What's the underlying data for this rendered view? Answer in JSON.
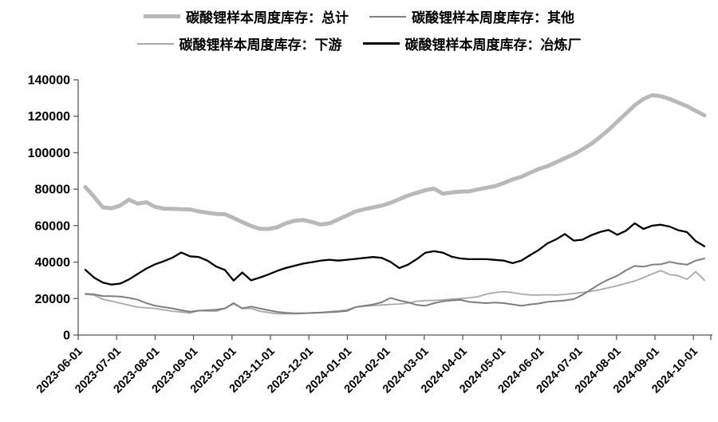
{
  "chart_data": {
    "type": "line",
    "title": "",
    "xlabel": "",
    "ylabel": "",
    "ylim": [
      0,
      140000
    ],
    "grid": false,
    "legend_position": "top",
    "y_ticks": [
      0,
      20000,
      40000,
      60000,
      80000,
      100000,
      120000,
      140000
    ],
    "x_tick_labels": [
      "2023-06-01",
      "2023-07-01",
      "2023-08-01",
      "2023-09-01",
      "2023-10-01",
      "2023-11-01",
      "2023-12-01",
      "2024-01-01",
      "2024-02-01",
      "2024-03-01",
      "2024-04-01",
      "2024-05-01",
      "2024-06-01",
      "2024-07-01",
      "2024-08-01",
      "2024-09-01",
      "2024-10-01"
    ],
    "x_frequency": "weekly",
    "x_range": [
      "2023-06-02",
      "2024-10-11"
    ],
    "series": [
      {
        "name": "碳酸锂样本周度库存：总计",
        "color": "#b9b9b9",
        "width": 5,
        "values": [
          81200,
          75800,
          70000,
          69500,
          71000,
          74300,
          72000,
          72800,
          70300,
          69300,
          69200,
          69000,
          68900,
          67800,
          67100,
          66400,
          66300,
          64200,
          62000,
          59800,
          58300,
          58200,
          59100,
          61300,
          62700,
          63100,
          62000,
          60600,
          61300,
          63400,
          65600,
          67800,
          69000,
          70000,
          71000,
          72500,
          74500,
          76500,
          78000,
          79500,
          80300,
          77500,
          78200,
          78600,
          78800,
          79900,
          80800,
          81700,
          83400,
          85300,
          86800,
          89000,
          91100,
          92600,
          94800,
          97000,
          99200,
          101800,
          104800,
          108500,
          112500,
          117000,
          121500,
          126000,
          129500,
          131500,
          131000,
          129500,
          127500,
          125500,
          123000,
          120500
        ]
      },
      {
        "name": "碳酸锂样本周度库存：其他",
        "color": "#7f7f7f",
        "width": 2,
        "values": [
          22600,
          22300,
          21400,
          21300,
          21100,
          20400,
          19400,
          17500,
          16100,
          15300,
          14600,
          13600,
          12800,
          13400,
          13600,
          13900,
          14600,
          17500,
          14600,
          15600,
          14600,
          13600,
          12700,
          12200,
          11900,
          12000,
          12100,
          12300,
          12500,
          12800,
          13200,
          15300,
          16000,
          16800,
          18000,
          20400,
          19000,
          18000,
          16500,
          16100,
          17500,
          18500,
          19000,
          19300,
          18200,
          17800,
          17500,
          17800,
          17500,
          16800,
          16100,
          16800,
          17300,
          18200,
          18600,
          19000,
          19700,
          22000,
          25000,
          28000,
          30500,
          32500,
          35500,
          37900,
          37500,
          38600,
          38800,
          40100,
          39200,
          38600,
          40800,
          42000
        ]
      },
      {
        "name": "碳酸锂样本周度库存：下游",
        "color": "#a9a9a9",
        "width": 1.8,
        "values": [
          22400,
          21900,
          19700,
          18600,
          17500,
          16400,
          15300,
          14900,
          14600,
          13800,
          13100,
          12600,
          12100,
          13400,
          13200,
          13100,
          14600,
          17200,
          14600,
          14600,
          13100,
          12400,
          11700,
          11700,
          11700,
          11900,
          12100,
          12400,
          12800,
          13200,
          13800,
          15300,
          15800,
          16200,
          16500,
          16800,
          17000,
          17500,
          18500,
          19000,
          19000,
          19300,
          19700,
          20000,
          20400,
          21000,
          22500,
          23300,
          23800,
          23300,
          22500,
          22000,
          21900,
          22100,
          21900,
          22300,
          22800,
          23300,
          24000,
          24800,
          26000,
          27000,
          28300,
          29600,
          31500,
          33500,
          35300,
          33200,
          32500,
          30600,
          34800,
          30000
        ]
      },
      {
        "name": "碳酸锂样本周度库存：冶炼厂",
        "color": "#000000",
        "width": 2.3,
        "values": [
          35800,
          31500,
          28800,
          27700,
          28200,
          30500,
          33500,
          36500,
          38800,
          40500,
          42500,
          45300,
          43200,
          42800,
          40800,
          37600,
          35700,
          29900,
          34300,
          30000,
          31500,
          33200,
          35200,
          36800,
          38000,
          39200,
          40000,
          40800,
          41300,
          40800,
          41300,
          41800,
          42300,
          42800,
          42300,
          40100,
          36700,
          38600,
          41600,
          45200,
          46000,
          45200,
          43000,
          42000,
          41600,
          41600,
          41600,
          41200,
          40800,
          39400,
          40800,
          43800,
          46700,
          50300,
          52500,
          55400,
          51800,
          52300,
          54700,
          56500,
          57600,
          55000,
          57200,
          61300,
          58200,
          60000,
          60500,
          59500,
          57500,
          56500,
          51500,
          48700
        ]
      }
    ],
    "axis_color": "#595959"
  }
}
